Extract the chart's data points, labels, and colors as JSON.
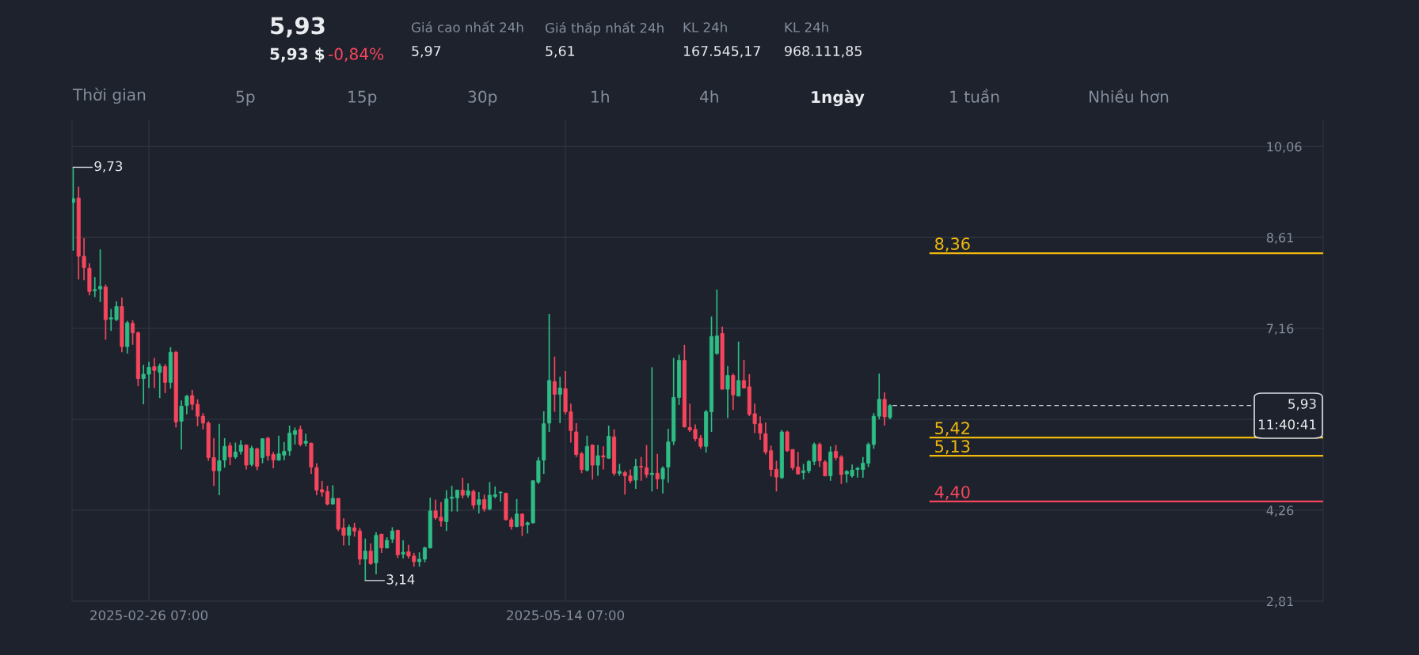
{
  "chart_data": {
    "type": "candlestick",
    "x": [
      "2025-02-12T07:00",
      "2025-02-13T07:00",
      "2025-02-14T07:00",
      "2025-02-15T07:00",
      "2025-02-16T07:00",
      "2025-02-17T07:00",
      "2025-02-18T07:00",
      "2025-02-19T07:00",
      "2025-02-20T07:00",
      "2025-02-21T07:00",
      "2025-02-22T07:00",
      "2025-02-23T07:00",
      "2025-02-24T07:00",
      "2025-02-25T07:00",
      "2025-02-26T07:00",
      "2025-02-27T07:00",
      "2025-02-28T07:00",
      "2025-03-01T07:00",
      "2025-03-02T07:00",
      "2025-03-03T07:00",
      "2025-03-04T07:00",
      "2025-03-05T07:00",
      "2025-03-06T07:00",
      "2025-03-07T07:00",
      "2025-03-08T07:00",
      "2025-03-09T07:00",
      "2025-03-10T07:00",
      "2025-03-11T07:00",
      "2025-03-12T07:00",
      "2025-03-13T07:00",
      "2025-03-14T07:00",
      "2025-03-15T07:00",
      "2025-03-16T07:00",
      "2025-03-17T07:00",
      "2025-03-18T07:00",
      "2025-03-19T07:00",
      "2025-03-20T07:00",
      "2025-03-21T07:00",
      "2025-03-22T07:00",
      "2025-03-23T07:00",
      "2025-03-24T07:00",
      "2025-03-25T07:00",
      "2025-03-26T07:00",
      "2025-03-27T07:00",
      "2025-03-28T07:00",
      "2025-03-29T07:00",
      "2025-03-30T07:00",
      "2025-03-31T07:00",
      "2025-04-01T07:00",
      "2025-04-02T07:00",
      "2025-04-03T07:00",
      "2025-04-04T07:00",
      "2025-04-05T07:00",
      "2025-04-06T07:00",
      "2025-04-07T07:00",
      "2025-04-08T07:00",
      "2025-04-09T07:00",
      "2025-04-10T07:00",
      "2025-04-11T07:00",
      "2025-04-12T07:00",
      "2025-04-13T07:00",
      "2025-04-14T07:00",
      "2025-04-15T07:00",
      "2025-04-16T07:00",
      "2025-04-17T07:00",
      "2025-04-18T07:00",
      "2025-04-19T07:00",
      "2025-04-20T07:00",
      "2025-04-21T07:00",
      "2025-04-22T07:00",
      "2025-04-23T07:00",
      "2025-04-24T07:00",
      "2025-04-25T07:00",
      "2025-04-26T07:00",
      "2025-04-27T07:00",
      "2025-04-28T07:00",
      "2025-04-29T07:00",
      "2025-04-30T07:00",
      "2025-05-01T07:00",
      "2025-05-02T07:00",
      "2025-05-03T07:00",
      "2025-05-04T07:00",
      "2025-05-05T07:00",
      "2025-05-06T07:00",
      "2025-05-07T07:00",
      "2025-05-08T07:00",
      "2025-05-09T07:00",
      "2025-05-10T07:00",
      "2025-05-11T07:00",
      "2025-05-12T07:00",
      "2025-05-13T07:00",
      "2025-05-14T07:00",
      "2025-05-15T07:00",
      "2025-05-16T07:00",
      "2025-05-17T07:00",
      "2025-05-18T07:00",
      "2025-05-19T07:00",
      "2025-05-20T07:00",
      "2025-05-21T07:00",
      "2025-05-22T07:00",
      "2025-05-23T07:00",
      "2025-05-24T07:00",
      "2025-05-25T07:00",
      "2025-05-26T07:00",
      "2025-05-27T07:00",
      "2025-05-28T07:00",
      "2025-05-29T07:00",
      "2025-05-30T07:00",
      "2025-05-31T07:00",
      "2025-06-01T07:00",
      "2025-06-02T07:00",
      "2025-06-03T07:00",
      "2025-06-04T07:00",
      "2025-06-05T07:00",
      "2025-06-06T07:00",
      "2025-06-07T07:00",
      "2025-06-08T07:00",
      "2025-06-09T07:00",
      "2025-06-10T07:00",
      "2025-06-11T07:00",
      "2025-06-12T07:00",
      "2025-06-13T07:00",
      "2025-06-14T07:00",
      "2025-06-15T07:00",
      "2025-06-16T07:00",
      "2025-06-17T07:00",
      "2025-06-18T07:00",
      "2025-06-19T07:00",
      "2025-06-20T07:00",
      "2025-06-21T07:00",
      "2025-06-22T07:00",
      "2025-06-23T07:00",
      "2025-06-24T07:00",
      "2025-06-25T07:00",
      "2025-06-26T07:00",
      "2025-06-27T07:00",
      "2025-06-28T07:00",
      "2025-06-29T07:00",
      "2025-06-30T07:00",
      "2025-07-01T07:00",
      "2025-07-02T07:00",
      "2025-07-03T07:00",
      "2025-07-04T07:00",
      "2025-07-05T07:00",
      "2025-07-06T07:00",
      "2025-07-07T07:00",
      "2025-07-08T07:00",
      "2025-07-09T07:00",
      "2025-07-10T07:00",
      "2025-07-11T07:00",
      "2025-07-12T07:00",
      "2025-07-13T07:00"
    ],
    "ohlc": [
      [
        9.17,
        9.73,
        8.4,
        9.23
      ],
      [
        9.24,
        9.42,
        7.94,
        8.31
      ],
      [
        8.31,
        8.6,
        7.93,
        8.13
      ],
      [
        8.12,
        8.2,
        7.69,
        7.75
      ],
      [
        7.76,
        7.98,
        7.66,
        7.78
      ],
      [
        7.79,
        8.42,
        7.58,
        7.83
      ],
      [
        7.82,
        7.86,
        6.98,
        7.3
      ],
      [
        7.31,
        7.47,
        7.12,
        7.33
      ],
      [
        7.3,
        7.59,
        7.28,
        7.51
      ],
      [
        7.51,
        7.65,
        6.78,
        6.87
      ],
      [
        6.87,
        7.28,
        6.76,
        7.25
      ],
      [
        7.24,
        7.29,
        6.9,
        7.09
      ],
      [
        7.09,
        7.11,
        6.24,
        6.36
      ],
      [
        6.36,
        6.58,
        5.95,
        6.43
      ],
      [
        6.43,
        6.63,
        6.21,
        6.54
      ],
      [
        6.55,
        6.69,
        6.21,
        6.49
      ],
      [
        6.46,
        6.6,
        6.05,
        6.56
      ],
      [
        6.55,
        6.59,
        6.13,
        6.3
      ],
      [
        6.3,
        6.86,
        6.2,
        6.78
      ],
      [
        6.78,
        6.8,
        5.58,
        5.67
      ],
      [
        5.68,
        6.01,
        5.23,
        5.92
      ],
      [
        5.93,
        6.1,
        5.79,
        6.08
      ],
      [
        6.09,
        6.18,
        5.86,
        5.95
      ],
      [
        5.95,
        6.03,
        5.6,
        5.76
      ],
      [
        5.76,
        5.81,
        5.55,
        5.65
      ],
      [
        5.65,
        5.68,
        5.05,
        5.1
      ],
      [
        5.1,
        5.41,
        4.65,
        4.89
      ],
      [
        4.89,
        5.64,
        4.5,
        5.05
      ],
      [
        5.06,
        5.41,
        4.94,
        5.28
      ],
      [
        5.29,
        5.34,
        4.98,
        5.11
      ],
      [
        5.11,
        5.34,
        5.08,
        5.19
      ],
      [
        5.2,
        5.38,
        5.15,
        5.3
      ],
      [
        5.3,
        5.31,
        4.91,
        4.98
      ],
      [
        4.99,
        5.29,
        4.96,
        5.25
      ],
      [
        5.24,
        5.26,
        4.9,
        4.96
      ],
      [
        5.1,
        5.41,
        5.01,
        5.4
      ],
      [
        5.41,
        5.43,
        5.05,
        5.13
      ],
      [
        5.15,
        5.19,
        4.93,
        5.06
      ],
      [
        5.06,
        5.45,
        5.05,
        5.16
      ],
      [
        5.14,
        5.35,
        5.06,
        5.2
      ],
      [
        5.21,
        5.61,
        5.13,
        5.49
      ],
      [
        5.47,
        5.58,
        5.31,
        5.53
      ],
      [
        5.55,
        5.61,
        5.28,
        5.31
      ],
      [
        5.33,
        5.48,
        5.28,
        5.36
      ],
      [
        5.33,
        5.34,
        4.84,
        4.95
      ],
      [
        4.94,
        5.01,
        4.5,
        4.58
      ],
      [
        4.59,
        4.73,
        4.48,
        4.55
      ],
      [
        4.56,
        4.65,
        4.34,
        4.36
      ],
      [
        4.36,
        4.66,
        4.35,
        4.45
      ],
      [
        4.45,
        4.45,
        3.93,
        3.96
      ],
      [
        3.98,
        4.13,
        3.7,
        3.86
      ],
      [
        3.86,
        4.03,
        3.7,
        3.99
      ],
      [
        3.98,
        4.06,
        3.84,
        3.93
      ],
      [
        3.93,
        3.98,
        3.39,
        3.48
      ],
      [
        3.48,
        3.81,
        3.14,
        3.61
      ],
      [
        3.61,
        3.73,
        3.39,
        3.41
      ],
      [
        3.42,
        3.91,
        3.24,
        3.86
      ],
      [
        3.88,
        3.88,
        3.58,
        3.66
      ],
      [
        3.66,
        3.83,
        3.65,
        3.78
      ],
      [
        3.8,
        3.99,
        3.74,
        3.93
      ],
      [
        3.94,
        3.95,
        3.5,
        3.55
      ],
      [
        3.56,
        3.78,
        3.49,
        3.59
      ],
      [
        3.6,
        3.71,
        3.49,
        3.53
      ],
      [
        3.53,
        3.58,
        3.36,
        3.44
      ],
      [
        3.44,
        3.59,
        3.36,
        3.48
      ],
      [
        3.48,
        3.68,
        3.43,
        3.66
      ],
      [
        3.66,
        4.46,
        3.65,
        4.25
      ],
      [
        4.25,
        4.43,
        4.11,
        4.14
      ],
      [
        4.15,
        4.39,
        4.0,
        4.09
      ],
      [
        4.08,
        4.58,
        3.93,
        4.44
      ],
      [
        4.45,
        4.65,
        4.24,
        4.47
      ],
      [
        4.46,
        4.59,
        4.24,
        4.58
      ],
      [
        4.58,
        4.78,
        4.45,
        4.5
      ],
      [
        4.5,
        4.69,
        4.46,
        4.57
      ],
      [
        4.56,
        4.59,
        4.28,
        4.34
      ],
      [
        4.35,
        4.55,
        4.21,
        4.43
      ],
      [
        4.43,
        4.51,
        4.24,
        4.28
      ],
      [
        4.28,
        4.71,
        4.26,
        4.5
      ],
      [
        4.48,
        4.64,
        4.45,
        4.51
      ],
      [
        4.54,
        4.56,
        4.4,
        4.55
      ],
      [
        4.53,
        4.54,
        4.1,
        4.11
      ],
      [
        4.11,
        4.15,
        3.95,
        4.0
      ],
      [
        4.0,
        4.44,
        3.99,
        4.2
      ],
      [
        4.2,
        4.21,
        3.85,
        4.01
      ],
      [
        4.03,
        4.08,
        3.89,
        4.06
      ],
      [
        4.06,
        4.74,
        4.05,
        4.73
      ],
      [
        4.71,
        5.11,
        4.68,
        5.05
      ],
      [
        5.06,
        5.84,
        4.84,
        5.64
      ],
      [
        5.65,
        7.39,
        5.51,
        6.33
      ],
      [
        6.31,
        6.71,
        5.83,
        6.11
      ],
      [
        6.11,
        6.39,
        5.65,
        6.21
      ],
      [
        6.2,
        6.48,
        5.79,
        5.83
      ],
      [
        5.83,
        5.96,
        5.34,
        5.53
      ],
      [
        5.51,
        5.65,
        5.11,
        5.15
      ],
      [
        5.16,
        5.19,
        4.85,
        4.91
      ],
      [
        4.9,
        5.45,
        4.88,
        5.28
      ],
      [
        5.3,
        5.31,
        4.75,
        4.98
      ],
      [
        4.98,
        5.3,
        4.81,
        5.13
      ],
      [
        5.13,
        5.28,
        4.91,
        5.11
      ],
      [
        5.09,
        5.61,
        5.08,
        5.44
      ],
      [
        5.43,
        5.55,
        4.81,
        4.85
      ],
      [
        4.85,
        5.0,
        4.81,
        4.88
      ],
      [
        4.86,
        4.89,
        4.51,
        4.81
      ],
      [
        4.81,
        4.91,
        4.69,
        4.73
      ],
      [
        4.74,
        5.08,
        4.6,
        4.96
      ],
      [
        4.96,
        5.11,
        4.73,
        4.95
      ],
      [
        4.94,
        5.3,
        4.78,
        4.83
      ],
      [
        4.83,
        6.54,
        4.56,
        4.85
      ],
      [
        4.85,
        5.16,
        4.6,
        4.76
      ],
      [
        4.76,
        4.96,
        4.53,
        4.93
      ],
      [
        4.95,
        5.56,
        4.7,
        5.35
      ],
      [
        5.36,
        6.69,
        5.3,
        6.06
      ],
      [
        6.06,
        6.74,
        5.94,
        6.65
      ],
      [
        6.65,
        6.9,
        5.58,
        5.59
      ],
      [
        5.58,
        5.96,
        5.51,
        5.54
      ],
      [
        5.55,
        5.63,
        5.36,
        5.4
      ],
      [
        5.41,
        5.46,
        5.24,
        5.28
      ],
      [
        5.28,
        5.86,
        5.18,
        5.83
      ],
      [
        5.83,
        7.35,
        5.51,
        7.03
      ],
      [
        6.76,
        7.78,
        6.74,
        7.04
      ],
      [
        7.08,
        7.19,
        6.19,
        6.19
      ],
      [
        6.19,
        6.56,
        5.73,
        6.41
      ],
      [
        6.41,
        6.44,
        5.86,
        6.1
      ],
      [
        6.08,
        6.95,
        6.08,
        6.33
      ],
      [
        6.33,
        6.66,
        6.2,
        6.21
      ],
      [
        6.23,
        6.43,
        5.76,
        5.79
      ],
      [
        5.8,
        5.96,
        5.49,
        5.64
      ],
      [
        5.64,
        5.76,
        5.38,
        5.49
      ],
      [
        5.48,
        5.66,
        5.15,
        5.19
      ],
      [
        5.21,
        5.29,
        4.8,
        4.91
      ],
      [
        4.91,
        5.05,
        4.56,
        4.79
      ],
      [
        4.78,
        5.54,
        4.76,
        5.51
      ],
      [
        5.51,
        5.53,
        5.19,
        5.21
      ],
      [
        5.23,
        5.23,
        4.9,
        4.94
      ],
      [
        4.95,
        5.19,
        4.83,
        4.84
      ],
      [
        4.86,
        5.0,
        4.75,
        4.89
      ],
      [
        4.89,
        5.06,
        4.85,
        5.04
      ],
      [
        5.04,
        5.34,
        4.98,
        5.31
      ],
      [
        5.31,
        5.34,
        4.95,
        5.05
      ],
      [
        5.03,
        5.06,
        4.8,
        4.81
      ],
      [
        4.81,
        5.28,
        4.73,
        5.19
      ],
      [
        5.2,
        5.3,
        5.06,
        5.1
      ],
      [
        5.11,
        5.14,
        4.68,
        4.83
      ],
      [
        4.84,
        4.9,
        4.7,
        4.88
      ],
      [
        4.81,
        4.99,
        4.78,
        4.9
      ],
      [
        4.91,
        4.95,
        4.78,
        4.93
      ],
      [
        4.91,
        5.11,
        4.78,
        5.01
      ],
      [
        5.01,
        5.34,
        4.95,
        5.31
      ],
      [
        5.31,
        5.81,
        5.24,
        5.76
      ],
      [
        5.76,
        6.44,
        5.71,
        6.03
      ],
      [
        6.03,
        6.14,
        5.61,
        5.75
      ],
      [
        5.74,
        5.95,
        5.71,
        5.93
      ]
    ],
    "xlim": [
      "2025-02-12T02:00",
      "2025-10-01T09:00"
    ],
    "xticks": [
      {
        "value": "2025-02-26T07:00",
        "label": "2025-02-26 07:00"
      },
      {
        "value": "2025-05-14T07:00",
        "label": "2025-05-14 07:00"
      }
    ],
    "ylim": [
      2.81,
      10.48
    ],
    "yticks": [
      {
        "value": 2.81,
        "label": "2,81"
      },
      {
        "value": 4.26,
        "label": "4,26"
      },
      {
        "value": 5.71,
        "label": null
      },
      {
        "value": 7.16,
        "label": "7,16"
      },
      {
        "value": 8.61,
        "label": "8,61"
      },
      {
        "value": 10.06,
        "label": "10,06"
      }
    ],
    "grid": true,
    "ref_lines": [
      {
        "axis": "y",
        "value": 8.36,
        "label": "8,36",
        "color": "#f0b90b"
      },
      {
        "axis": "y",
        "value": 5.42,
        "label": "5,42",
        "color": "#f0b90b"
      },
      {
        "axis": "y",
        "value": 5.13,
        "label": "5,13",
        "color": "#f0b90b"
      },
      {
        "axis": "y",
        "value": 4.4,
        "label": "4,40",
        "color": "#f6465d"
      },
      {
        "axis": "y",
        "value": 5.93,
        "label": "5,93",
        "color": "#c8ccd4",
        "line_style": "dashed"
      }
    ],
    "annotations": [
      {
        "text": "9,73",
        "x": "2025-02-12T07:00",
        "y": 9.73
      },
      {
        "text": "3,14",
        "x": "2025-04-07T07:00",
        "y": 3.14
      },
      "11:40:41",
      "5,93",
      "5,93 $",
      "-0,84%",
      "Giá cao nhất 24h",
      "5,97",
      "Giá thấp nhất 24h",
      "5,61",
      "KL 24h",
      "167.545,17",
      "KL 24h",
      "968.111,85",
      "Thời gian",
      "5p",
      "15p",
      "30p",
      "1h",
      "4h",
      "1ngày",
      "1 tuần",
      "Nhiều hơn"
    ]
  }
}
